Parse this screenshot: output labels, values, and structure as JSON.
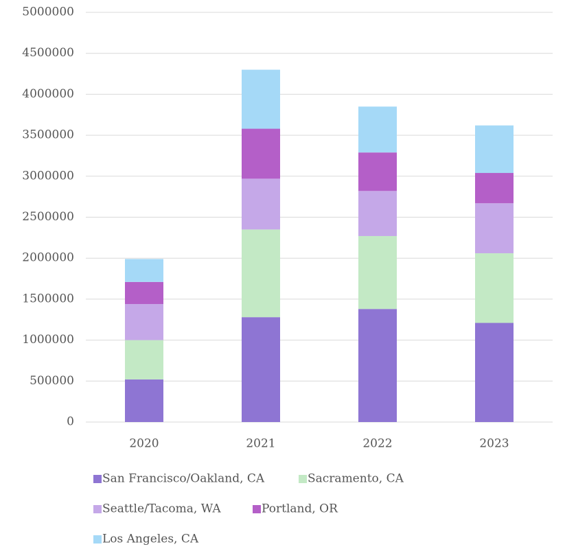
{
  "chart_data": {
    "type": "stacked_bar",
    "categories": [
      "2020",
      "2021",
      "2022",
      "2023"
    ],
    "series": [
      {
        "name": "San Francisco/Oakland, CA",
        "color": "#8e75d3",
        "values": [
          520000,
          1280000,
          1380000,
          1210000
        ]
      },
      {
        "name": "Sacramento, CA",
        "color": "#c3e9c5",
        "values": [
          480000,
          1070000,
          890000,
          850000
        ]
      },
      {
        "name": "Seattle/Tacoma, WA",
        "color": "#c5a8e8",
        "values": [
          440000,
          620000,
          550000,
          610000
        ]
      },
      {
        "name": "Portland, OR",
        "color": "#b45fc8",
        "values": [
          270000,
          610000,
          470000,
          370000
        ]
      },
      {
        "name": "Los Angeles, CA",
        "color": "#a5d9f7",
        "values": [
          280000,
          720000,
          560000,
          580000
        ]
      }
    ],
    "ylim": [
      0,
      5000000
    ],
    "yticks": [
      0,
      500000,
      1000000,
      1500000,
      2000000,
      2500000,
      3000000,
      3500000,
      4000000,
      4500000,
      5000000
    ],
    "grid": true,
    "legend": "bottom"
  }
}
